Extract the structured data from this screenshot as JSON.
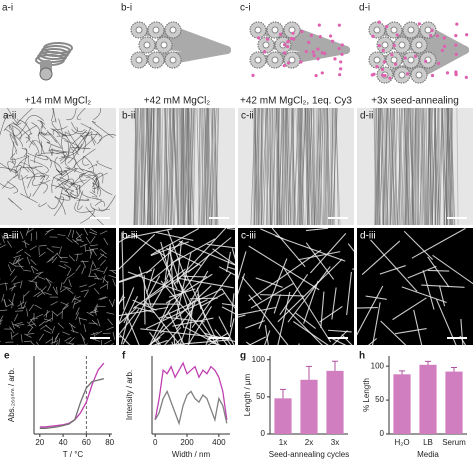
{
  "panels": {
    "top_labels": [
      "a-i",
      "b-i",
      "c-i",
      "d-i"
    ],
    "conditions": [
      "+14 mM MgCl₂",
      "+42 mM MgCl₂",
      "+42 mM MgCl₂, 1eq. Cy3",
      "+3x seed-annealing"
    ],
    "row2_labels": [
      "a-ii",
      "b-ii",
      "c-ii",
      "d-ii"
    ],
    "row3_labels": [
      "a-iii",
      "b-iii",
      "c-iii",
      "d-iii"
    ]
  },
  "chart_data": [
    {
      "type": "line",
      "label": "e",
      "xlabel": "T / °C",
      "ylabel": "Abs.₂₆₀ₙₘ / arb.",
      "x": [
        20,
        25,
        30,
        35,
        40,
        45,
        50,
        55,
        60,
        65,
        70,
        75
      ],
      "series": [
        {
          "color": "#c040b0",
          "values": [
            0.1,
            0.1,
            0.11,
            0.12,
            0.13,
            0.15,
            0.2,
            0.3,
            0.45,
            0.7,
            0.9,
            1.0
          ]
        },
        {
          "color": "#707070",
          "values": [
            0.08,
            0.08,
            0.09,
            0.1,
            0.12,
            0.14,
            0.2,
            0.45,
            0.65,
            0.74,
            0.76,
            0.78
          ]
        }
      ],
      "xlim": [
        15,
        82
      ],
      "xticks": [
        20,
        40,
        60,
        80
      ],
      "ylim": [
        0,
        1.1
      ],
      "vline": 60
    },
    {
      "type": "line",
      "label": "f",
      "xlabel": "Width / nm",
      "ylabel": "Intensity / arb.",
      "x": [
        0,
        25,
        50,
        75,
        100,
        125,
        150,
        175,
        200,
        225,
        250,
        275,
        300,
        325,
        350,
        375,
        400,
        425,
        450
      ],
      "series": [
        {
          "color": "#c040b0",
          "values": [
            0.2,
            0.5,
            0.9,
            0.85,
            0.95,
            0.8,
            0.9,
            1.0,
            0.85,
            0.9,
            0.95,
            0.8,
            0.9,
            0.85,
            0.95,
            0.9,
            0.8,
            0.6,
            0.2
          ]
        },
        {
          "color": "#808080",
          "values": [
            0.2,
            0.3,
            0.5,
            0.6,
            0.45,
            0.3,
            0.15,
            0.4,
            0.55,
            0.6,
            0.5,
            0.45,
            0.55,
            0.5,
            0.35,
            0.2,
            0.5,
            0.4,
            0.15
          ]
        }
      ],
      "xlim": [
        -20,
        470
      ],
      "xticks": [
        0,
        200,
        400
      ],
      "ylim": [
        0,
        1.1
      ]
    },
    {
      "type": "bar",
      "label": "g",
      "xlabel": "Seed-annealing cycles",
      "ylabel": "Length / µm",
      "categories": [
        "1x",
        "2x",
        "3x"
      ],
      "values": [
        48,
        73,
        85
      ],
      "errors": [
        12,
        18,
        13
      ],
      "color": "#d07ec0",
      "ylim": [
        0,
        105
      ],
      "yticks": [
        0,
        50,
        100
      ]
    },
    {
      "type": "bar",
      "label": "h",
      "xlabel": "Media",
      "ylabel": "% Length",
      "categories": [
        "H₂O",
        "LB",
        "Serum"
      ],
      "values": [
        88,
        102,
        92
      ],
      "errors": [
        5,
        5,
        6
      ],
      "color": "#d07ec0",
      "ylim": [
        0,
        115
      ],
      "yticks": [
        0,
        50,
        100
      ]
    }
  ]
}
